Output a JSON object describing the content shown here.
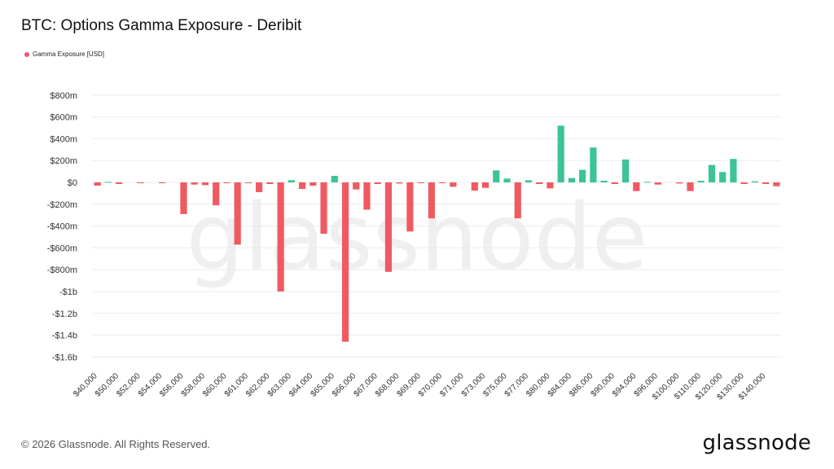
{
  "colors": {
    "negative": "#ef5a61",
    "positive": "#3cc495",
    "grid": "#ececec",
    "legend": "#ef5a61"
  },
  "watermark": "glassnode",
  "footer": {
    "copyright": "© 2026 Glassnode. All Rights Reserved.",
    "brand": "glassnode"
  },
  "chart_data": {
    "type": "bar",
    "title": "BTC: Options Gamma Exposure - Deribit",
    "xlabel": "",
    "ylabel": "",
    "legend": {
      "placement": "top-left",
      "entries": [
        "Gamma Exposure [USD]"
      ]
    },
    "grid": true,
    "ylim": [
      -1700000000,
      850000000
    ],
    "y_ticks": [
      {
        "v": 800000000,
        "label": "$800m"
      },
      {
        "v": 600000000,
        "label": "$600m"
      },
      {
        "v": 400000000,
        "label": "$400m"
      },
      {
        "v": 200000000,
        "label": "$200m"
      },
      {
        "v": 0,
        "label": "$0"
      },
      {
        "v": -200000000,
        "label": "-$200m"
      },
      {
        "v": -400000000,
        "label": "-$400m"
      },
      {
        "v": -600000000,
        "label": "-$600m"
      },
      {
        "v": -800000000,
        "label": "-$800m"
      },
      {
        "v": -1000000000,
        "label": "-$1b"
      },
      {
        "v": -1200000000,
        "label": "-$1.2b"
      },
      {
        "v": -1400000000,
        "label": "-$1.4b"
      },
      {
        "v": -1600000000,
        "label": "-$1.6b"
      }
    ],
    "x_tick_labels": [
      "$40,000",
      "$50,000",
      "$52,000",
      "$54,000",
      "$56,000",
      "$58,000",
      "$60,000",
      "$61,000",
      "$62,000",
      "$63,000",
      "$64,000",
      "$65,000",
      "$66,000",
      "$67,000",
      "$68,000",
      "$69,000",
      "$70,000",
      "$71,000",
      "$73,000",
      "$75,000",
      "$77,000",
      "$80,000",
      "$84,000",
      "$86,000",
      "$90,000",
      "$94,000",
      "$96,000",
      "$100,000",
      "$110,000",
      "$120,000",
      "$130,000",
      "$140,000"
    ],
    "series": [
      {
        "name": "Gamma Exposure [USD]",
        "values": [
          -30000000,
          5000000,
          -15000000,
          0,
          -5000000,
          0,
          -5000000,
          0,
          -290000000,
          -20000000,
          -25000000,
          -210000000,
          -5000000,
          -570000000,
          -5000000,
          -90000000,
          -15000000,
          -1000000000,
          20000000,
          -60000000,
          -30000000,
          -470000000,
          60000000,
          -1460000000,
          -65000000,
          -250000000,
          -15000000,
          -820000000,
          -10000000,
          -450000000,
          -5000000,
          -330000000,
          -5000000,
          -40000000,
          0,
          -75000000,
          -50000000,
          110000000,
          35000000,
          -330000000,
          20000000,
          -15000000,
          -55000000,
          520000000,
          40000000,
          115000000,
          320000000,
          15000000,
          -15000000,
          210000000,
          -80000000,
          5000000,
          -20000000,
          0,
          -10000000,
          -80000000,
          15000000,
          160000000,
          95000000,
          215000000,
          -15000000,
          10000000,
          -15000000,
          -35000000
        ]
      }
    ]
  }
}
